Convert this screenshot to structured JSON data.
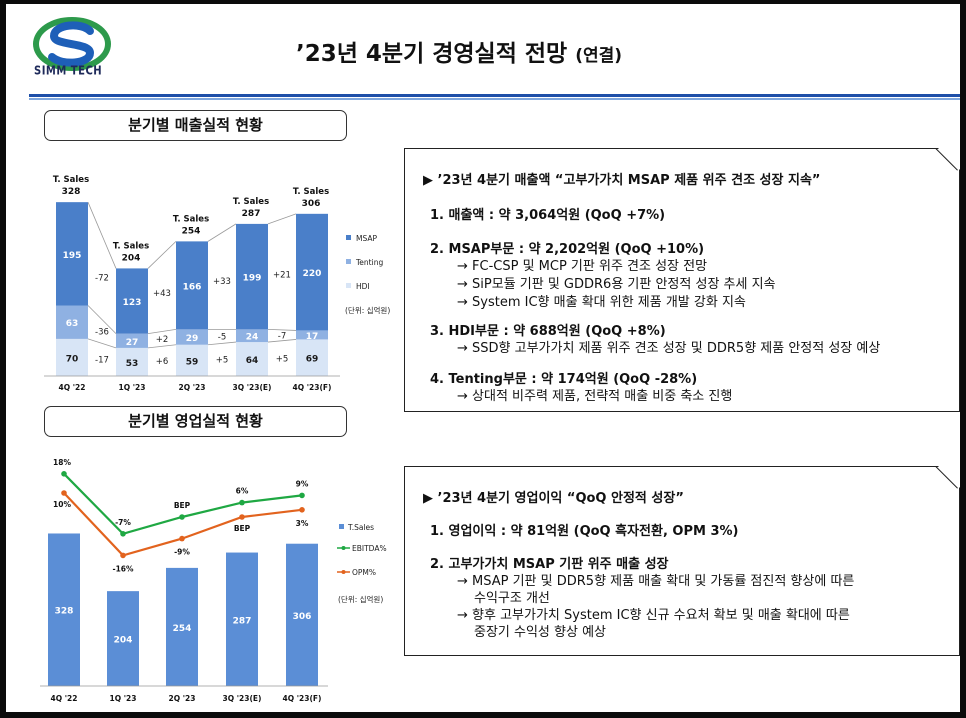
{
  "logo": {
    "text": "SIMM TECH"
  },
  "title": {
    "main": "’23년 4분기 경영실적 전망",
    "suffix": "(연결)"
  },
  "sections": {
    "sales_title": "분기별 매출실적 현황",
    "op_title": "분기별 영업실적 현황"
  },
  "colors": {
    "msap": "#4a7fc9",
    "tenting": "#8fb1e2",
    "hdi": "#d8e5f6",
    "tsales": "#5b8ed6",
    "ebitda": "#1fa843",
    "opm": "#e2631e",
    "header_rule": "#1e4fa8"
  },
  "chart_data": [
    {
      "type": "bar",
      "stacked": true,
      "title": "분기별 매출실적 현황",
      "categories": [
        "4Q '22",
        "1Q '23",
        "2Q '23",
        "3Q '23(E)",
        "4Q '23(F)"
      ],
      "series": [
        {
          "name": "MSAP",
          "values": [
            195,
            123,
            166,
            199,
            220
          ]
        },
        {
          "name": "Tenting",
          "values": [
            63,
            27,
            29,
            24,
            17
          ]
        },
        {
          "name": "HDI",
          "values": [
            70,
            53,
            59,
            64,
            69
          ]
        }
      ],
      "totals_label": "T. Sales",
      "totals": [
        328,
        204,
        254,
        287,
        306
      ],
      "change_labels": {
        "MSAP": [
          "-72",
          "+43",
          "+33",
          "+21"
        ],
        "Tenting": [
          "-36",
          "+2",
          "-5",
          "-7"
        ],
        "HDI": [
          "-17",
          "+6",
          "+5",
          "+5"
        ]
      },
      "unit_note": "(단위: 십억원)"
    },
    {
      "type": "bar",
      "title": "분기별 영업실적 현황",
      "categories": [
        "4Q '22",
        "1Q '23",
        "2Q '23",
        "3Q '23(E)",
        "4Q '23(F)"
      ],
      "series": [
        {
          "name": "T.Sales",
          "type": "bar",
          "values": [
            328,
            204,
            254,
            287,
            306
          ]
        },
        {
          "name": "EBITDA%",
          "type": "line",
          "values": [
            18,
            -7,
            0,
            6,
            9
          ],
          "labels": [
            "18%",
            "-7%",
            "BEP",
            "6%",
            "9%"
          ]
        },
        {
          "name": "OPM%",
          "type": "line",
          "values": [
            10,
            -16,
            -9,
            0,
            3
          ],
          "labels": [
            "10%",
            "-16%",
            "-9%",
            "BEP",
            "3%"
          ]
        }
      ],
      "unit_note": "(단위: 십억원)"
    }
  ],
  "panel1": {
    "heading": "▶ ’23년 4분기 매출액  “고부가가치 MSAP 제품 위주 견조 성장 지속”",
    "items": [
      {
        "title": "1. 매출액 : 약 3,064억원 (QoQ +7%)",
        "subs": []
      },
      {
        "title": "2. MSAP부문 : 약 2,202억원 (QoQ +10%)",
        "subs": [
          "→ FC-CSP 및 MCP 기판 위주 견조 성장 전망",
          "→ SiP모듈 기판 및 GDDR6용 기판 안정적 성장 추세 지속",
          "→ System IC향 매출 확대 위한 제품 개발 강화 지속"
        ]
      },
      {
        "title": "3. HDI부문 : 약 688억원 (QoQ +8%)",
        "subs": [
          "→ SSD향 고부가가치 제품 위주 견조 성장 및 DDR5향 제품 안정적 성장 예상"
        ]
      },
      {
        "title": "4.  Tenting부문 : 약 174억원 (QoQ -28%)",
        "subs": [
          "→ 상대적 비주력 제품, 전략적 매출 비중 축소 진행"
        ]
      }
    ]
  },
  "panel2": {
    "heading": "▶ ’23년 4분기 영업이익  “QoQ 안정적 성장”",
    "items": [
      {
        "title": "1. 영업이익 : 약 81억원 (QoQ 흑자전환, OPM 3%)",
        "subs": []
      },
      {
        "title": "2. 고부가가치 MSAP 기판 위주 매출 성장",
        "subs": [
          "→ MSAP 기판 및 DDR5향 제품 매출 확대 및 가동률 점진적 향상에 따른",
          "수익구조 개선",
          "→ 향후 고부가가치 System IC향 신규 수요처 확보 및 매출 확대에 따른",
          "중장기 수익성 향상 예상"
        ]
      }
    ]
  }
}
